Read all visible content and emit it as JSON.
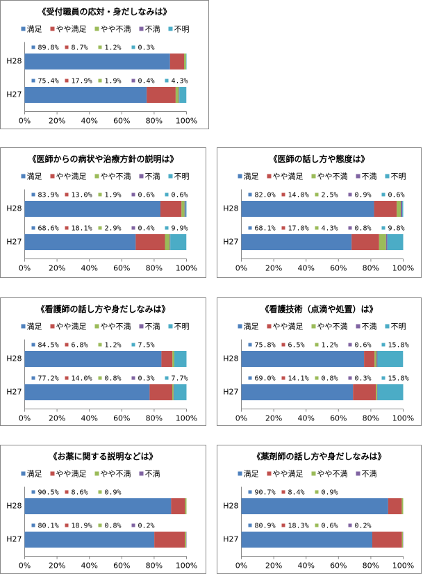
{
  "chart_data": [
    {
      "type": "stacked_barh",
      "title": "《受付職員の応対・身だしなみは》",
      "categories": [
        "H28",
        "H27"
      ],
      "series": [
        {
          "name": "満足",
          "color": "#4f81bd",
          "values": [
            89.8,
            75.4
          ],
          "value_labels": [
            "89.8%",
            "75.4%"
          ]
        },
        {
          "name": "やや満足",
          "color": "#c0504d",
          "values": [
            8.7,
            17.9
          ],
          "value_labels": [
            "8.7%",
            "17.9%"
          ]
        },
        {
          "name": "やや不満",
          "color": "#9bbb59",
          "values": [
            1.2,
            1.9
          ],
          "value_labels": [
            "1.2%",
            "1.9%"
          ]
        },
        {
          "name": "不満",
          "color": "#8064a2",
          "values": [
            null,
            0.4
          ],
          "value_labels": [
            null,
            "0.4%"
          ]
        },
        {
          "name": "不明",
          "color": "#4bacc6",
          "values": [
            0.3,
            4.3
          ],
          "value_labels": [
            "0.3%",
            "4.3%"
          ]
        }
      ],
      "xlim": [
        0,
        100
      ],
      "xticks": [
        {
          "value": 0,
          "label": "0%"
        },
        {
          "value": 20,
          "label": "20%"
        },
        {
          "value": 40,
          "label": "40%"
        },
        {
          "value": 60,
          "label": "60%"
        },
        {
          "value": 80,
          "label": "80%"
        },
        {
          "value": 100,
          "label": "100%"
        }
      ],
      "legend": "top"
    },
    {
      "type": "stacked_barh",
      "title": "《医師からの病状や治療方針の説明は》",
      "categories": [
        "H28",
        "H27"
      ],
      "series": [
        {
          "name": "満足",
          "color": "#4f81bd",
          "values": [
            83.9,
            68.6
          ],
          "value_labels": [
            "83.9%",
            "68.6%"
          ]
        },
        {
          "name": "やや満足",
          "color": "#c0504d",
          "values": [
            13.0,
            18.1
          ],
          "value_labels": [
            "13.0%",
            "18.1%"
          ]
        },
        {
          "name": "やや不満",
          "color": "#9bbb59",
          "values": [
            1.9,
            2.9
          ],
          "value_labels": [
            "1.9%",
            "2.9%"
          ]
        },
        {
          "name": "不満",
          "color": "#8064a2",
          "values": [
            0.6,
            0.4
          ],
          "value_labels": [
            "0.6%",
            "0.4%"
          ]
        },
        {
          "name": "不明",
          "color": "#4bacc6",
          "values": [
            0.6,
            9.9
          ],
          "value_labels": [
            "0.6%",
            "9.9%"
          ]
        }
      ],
      "xlim": [
        0,
        100
      ],
      "xticks": [
        {
          "value": 0,
          "label": "0%"
        },
        {
          "value": 20,
          "label": "20%"
        },
        {
          "value": 40,
          "label": "40%"
        },
        {
          "value": 60,
          "label": "60%"
        },
        {
          "value": 80,
          "label": "80%"
        },
        {
          "value": 100,
          "label": "100%"
        }
      ],
      "legend": "top"
    },
    {
      "type": "stacked_barh",
      "title": "《医師の話し方や態度は》",
      "categories": [
        "H28",
        "H27"
      ],
      "series": [
        {
          "name": "満足",
          "color": "#4f81bd",
          "values": [
            82.0,
            68.1
          ],
          "value_labels": [
            "82.0%",
            "68.1%"
          ]
        },
        {
          "name": "やや満足",
          "color": "#c0504d",
          "values": [
            14.0,
            17.0
          ],
          "value_labels": [
            "14.0%",
            "17.0%"
          ]
        },
        {
          "name": "やや不満",
          "color": "#9bbb59",
          "values": [
            2.5,
            4.3
          ],
          "value_labels": [
            "2.5%",
            "4.3%"
          ]
        },
        {
          "name": "不満",
          "color": "#8064a2",
          "values": [
            0.9,
            0.8
          ],
          "value_labels": [
            "0.9%",
            "0.8%"
          ]
        },
        {
          "name": "不明",
          "color": "#4bacc6",
          "values": [
            0.6,
            9.8
          ],
          "value_labels": [
            "0.6%",
            "9.8%"
          ]
        }
      ],
      "xlim": [
        0,
        100
      ],
      "xticks": [
        {
          "value": 0,
          "label": "0%"
        },
        {
          "value": 20,
          "label": "20%"
        },
        {
          "value": 40,
          "label": "40%"
        },
        {
          "value": 60,
          "label": "60%"
        },
        {
          "value": 80,
          "label": "80%"
        },
        {
          "value": 100,
          "label": "100%"
        }
      ],
      "legend": "top"
    },
    {
      "type": "stacked_barh",
      "title": "《看護師の話し方や身だしなみは》",
      "categories": [
        "H28",
        "H27"
      ],
      "series": [
        {
          "name": "満足",
          "color": "#4f81bd",
          "values": [
            84.5,
            77.2
          ],
          "value_labels": [
            "84.5%",
            "77.2%"
          ]
        },
        {
          "name": "やや満足",
          "color": "#c0504d",
          "values": [
            6.8,
            14.0
          ],
          "value_labels": [
            "6.8%",
            "14.0%"
          ]
        },
        {
          "name": "やや不満",
          "color": "#9bbb59",
          "values": [
            1.2,
            0.8
          ],
          "value_labels": [
            "1.2%",
            "0.8%"
          ]
        },
        {
          "name": "不満",
          "color": "#8064a2",
          "values": [
            null,
            0.3
          ],
          "value_labels": [
            null,
            "0.3%"
          ]
        },
        {
          "name": "不明",
          "color": "#4bacc6",
          "values": [
            7.5,
            7.7
          ],
          "value_labels": [
            "7.5%",
            "7.7%"
          ]
        }
      ],
      "xlim": [
        0,
        100
      ],
      "xticks": [
        {
          "value": 0,
          "label": "0%"
        },
        {
          "value": 20,
          "label": "20%"
        },
        {
          "value": 40,
          "label": "40%"
        },
        {
          "value": 60,
          "label": "60%"
        },
        {
          "value": 80,
          "label": "80%"
        },
        {
          "value": 100,
          "label": "100%"
        }
      ],
      "legend": "top"
    },
    {
      "type": "stacked_barh",
      "title": "《看護技術（点滴や処置）は》",
      "categories": [
        "H28",
        "H27"
      ],
      "series": [
        {
          "name": "満足",
          "color": "#4f81bd",
          "values": [
            75.8,
            69.0
          ],
          "value_labels": [
            "75.8%",
            "69.0%"
          ]
        },
        {
          "name": "やや満足",
          "color": "#c0504d",
          "values": [
            6.5,
            14.1
          ],
          "value_labels": [
            "6.5%",
            "14.1%"
          ]
        },
        {
          "name": "やや不満",
          "color": "#9bbb59",
          "values": [
            1.2,
            0.8
          ],
          "value_labels": [
            "1.2%",
            "0.8%"
          ]
        },
        {
          "name": "不満",
          "color": "#8064a2",
          "values": [
            0.6,
            0.3
          ],
          "value_labels": [
            "0.6%",
            "0.3%"
          ]
        },
        {
          "name": "不明",
          "color": "#4bacc6",
          "values": [
            15.8,
            15.8
          ],
          "value_labels": [
            "15.8%",
            "15.8%"
          ]
        }
      ],
      "xlim": [
        0,
        100
      ],
      "xticks": [
        {
          "value": 0,
          "label": "0%"
        },
        {
          "value": 20,
          "label": "20%"
        },
        {
          "value": 40,
          "label": "40%"
        },
        {
          "value": 60,
          "label": "60%"
        },
        {
          "value": 80,
          "label": "80%"
        },
        {
          "value": 100,
          "label": "100%"
        }
      ],
      "legend": "top"
    },
    {
      "type": "stacked_barh",
      "title": "《お薬に関する説明などは》",
      "categories": [
        "H28",
        "H27"
      ],
      "series": [
        {
          "name": "満足",
          "color": "#4f81bd",
          "values": [
            90.5,
            80.1
          ],
          "value_labels": [
            "90.5%",
            "80.1%"
          ]
        },
        {
          "name": "やや満足",
          "color": "#c0504d",
          "values": [
            8.6,
            18.9
          ],
          "value_labels": [
            "8.6%",
            "18.9%"
          ]
        },
        {
          "name": "やや不満",
          "color": "#9bbb59",
          "values": [
            0.9,
            0.8
          ],
          "value_labels": [
            "0.9%",
            "0.8%"
          ]
        },
        {
          "name": "不満",
          "color": "#8064a2",
          "values": [
            null,
            0.2
          ],
          "value_labels": [
            null,
            "0.2%"
          ]
        }
      ],
      "xlim": [
        0,
        100
      ],
      "xticks": [
        {
          "value": 0,
          "label": "0%"
        },
        {
          "value": 20,
          "label": "20%"
        },
        {
          "value": 40,
          "label": "40%"
        },
        {
          "value": 60,
          "label": "60%"
        },
        {
          "value": 80,
          "label": "80%"
        },
        {
          "value": 100,
          "label": "100%"
        }
      ],
      "legend": "top"
    },
    {
      "type": "stacked_barh",
      "title": "《薬剤師の話し方や身だしなみは》",
      "categories": [
        "H28",
        "H27"
      ],
      "series": [
        {
          "name": "満足",
          "color": "#4f81bd",
          "values": [
            90.7,
            80.9
          ],
          "value_labels": [
            "90.7%",
            "80.9%"
          ]
        },
        {
          "name": "やや満足",
          "color": "#c0504d",
          "values": [
            8.4,
            18.3
          ],
          "value_labels": [
            "8.4%",
            "18.3%"
          ]
        },
        {
          "name": "やや不満",
          "color": "#9bbb59",
          "values": [
            0.9,
            0.6
          ],
          "value_labels": [
            "0.9%",
            "0.6%"
          ]
        },
        {
          "name": "不満",
          "color": "#8064a2",
          "values": [
            null,
            0.2
          ],
          "value_labels": [
            null,
            "0.2%"
          ]
        }
      ],
      "xlim": [
        0,
        100
      ],
      "xticks": [
        {
          "value": 0,
          "label": "0%"
        },
        {
          "value": 20,
          "label": "20%"
        },
        {
          "value": 40,
          "label": "40%"
        },
        {
          "value": 60,
          "label": "60%"
        },
        {
          "value": 80,
          "label": "80%"
        },
        {
          "value": 100,
          "label": "100%"
        }
      ],
      "legend": "top"
    }
  ]
}
